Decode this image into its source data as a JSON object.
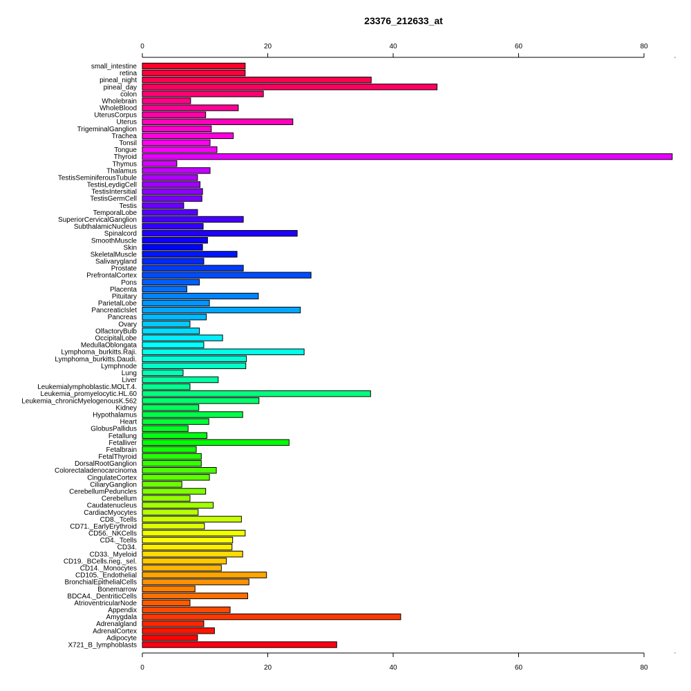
{
  "chart_data": {
    "type": "bar",
    "orientation": "horizontal",
    "title": "23376_212633_at",
    "xlabel": "",
    "ylabel": "",
    "xlim": [
      0,
      85
    ],
    "ticks": [
      0,
      20,
      40,
      60,
      80
    ],
    "tick_labels": [
      "0",
      "20",
      "40",
      "60",
      "80"
    ],
    "grid": false,
    "axes": "top and bottom",
    "color_scheme": "rainbow",
    "categories": [
      "small_intestine",
      "retina",
      "pineal_night",
      "pineal_day",
      "colon",
      "Wholebrain",
      "WholeBlood",
      "UterusCorpus",
      "Uterus",
      "TrigeminalGanglion",
      "Trachea",
      "Tonsil",
      "Tongue",
      "Thyroid",
      "Thymus",
      "Thalamus",
      "TestisSeminiferousTubule",
      "TestisLeydigCell",
      "TestisIntersitial",
      "TestisGermCell",
      "Testis",
      "TemporalLobe",
      "SuperiorCervicalGanglion",
      "SubthalamicNucleus",
      "Spinalcord",
      "SmoothMuscle",
      "Skin",
      "SkeletalMuscle",
      "Salivarygland",
      "Prostate",
      "PrefrontalCortex",
      "Pons",
      "Placenta",
      "Pituitary",
      "ParietalLobe",
      "PancreaticIslet",
      "Pancreas",
      "Ovary",
      "OlfactoryBulb",
      "OccipitalLobe",
      "MedullaOblongata",
      "Lymphoma_burkitts.Raji.",
      "Lymphoma_burkitts.Daudi.",
      "Lymphnode",
      "Lung",
      "Liver",
      "Leukemialymphoblastic.MOLT.4.",
      "Leukemia_promyelocytic.HL.60",
      "Leukemia_chronicMyelogenousK.562",
      "Kidney",
      "Hypothalamus",
      "Heart",
      "GlobusPallidus",
      "Fetallung",
      "Fetalliver",
      "Fetalbrain",
      "FetalThyroid",
      "DorsalRootGanglion",
      "Colorectaladenocarcinoma",
      "CingulateCortex",
      "CiliaryGanglion",
      "CerebellumPeduncles",
      "Cerebellum",
      "Caudatenucleus",
      "CardiacMyocytes",
      "CD8._Tcells",
      "CD71._EarlyErythroid",
      "CD56._NKCells",
      "CD4._Tcells",
      "CD34.",
      "CD33._Myeloid",
      "CD19._BCells.neg._sel.",
      "CD14._Monocytes",
      "CD105._Endothelial",
      "BronchialEpithelialCells",
      "Bonemarrow",
      "BDCA4._DentriticCells",
      "AtrioventricularNode",
      "Appendix",
      "Amygdala",
      "Adrenalgland",
      "AdrenalCortex",
      "Adipocyte",
      "X721_B_lymphoblasts"
    ],
    "values": [
      16.4,
      16.4,
      36.5,
      47.0,
      19.3,
      7.7,
      15.3,
      10.1,
      24.0,
      11.0,
      14.5,
      10.8,
      11.9,
      84.5,
      5.5,
      10.8,
      8.8,
      9.2,
      9.6,
      9.5,
      6.6,
      8.8,
      16.1,
      9.7,
      24.7,
      10.4,
      9.6,
      15.1,
      9.8,
      16.1,
      26.9,
      9.1,
      7.1,
      18.5,
      10.7,
      25.2,
      10.2,
      7.6,
      9.1,
      12.8,
      9.8,
      25.8,
      16.6,
      16.5,
      6.5,
      12.1,
      7.6,
      36.4,
      18.6,
      9.0,
      16.0,
      10.6,
      7.3,
      10.3,
      23.4,
      8.6,
      9.4,
      9.4,
      11.8,
      10.7,
      6.3,
      10.1,
      7.6,
      11.3,
      8.9,
      15.8,
      9.9,
      16.4,
      14.4,
      14.3,
      16.0,
      13.4,
      12.6,
      19.8,
      17.0,
      8.4,
      16.8,
      7.6,
      14.0,
      41.2,
      9.8,
      11.5,
      8.8,
      31.0
    ]
  }
}
